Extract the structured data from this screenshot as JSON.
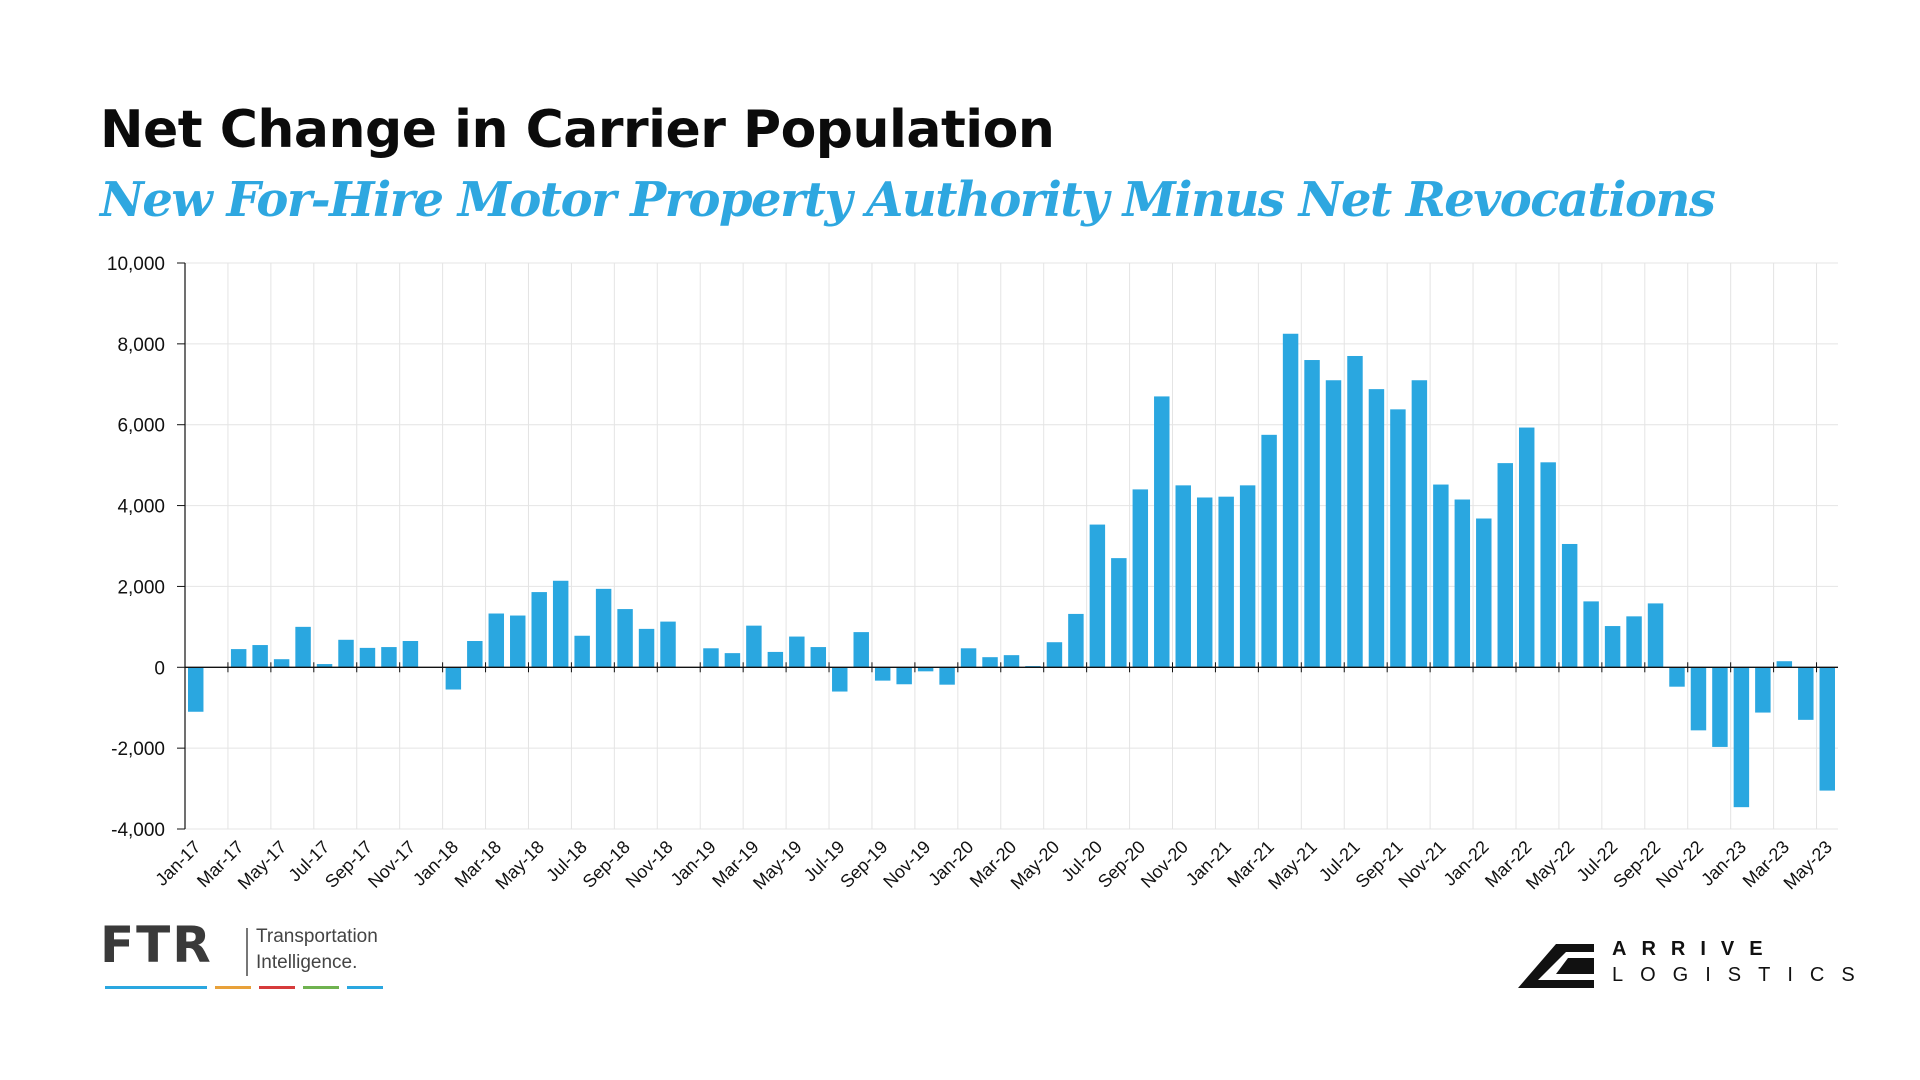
{
  "title": "Net Change in Carrier Population",
  "subtitle": "New For-Hire Motor Property Authority Minus Net Revocations",
  "colors": {
    "bar": "#2aa7e0",
    "subtitle": "#2ea7e0",
    "grid": "#e4e4e4",
    "axis": "#111111"
  },
  "chart_data": {
    "type": "bar",
    "ylim": [
      -4000,
      10000
    ],
    "yticks": [
      10000,
      8000,
      6000,
      4000,
      2000,
      0,
      -2000,
      -4000
    ],
    "ytick_labels": [
      "10,000",
      "8,000",
      "6,000",
      "4,000",
      "2,000",
      "0",
      "-2,000",
      "-4,000"
    ],
    "grid": true,
    "categories": [
      "Jan-17",
      "Feb-17",
      "Mar-17",
      "Apr-17",
      "May-17",
      "Jun-17",
      "Jul-17",
      "Aug-17",
      "Sep-17",
      "Oct-17",
      "Nov-17",
      "Dec-17",
      "Jan-18",
      "Feb-18",
      "Mar-18",
      "Apr-18",
      "May-18",
      "Jun-18",
      "Jul-18",
      "Aug-18",
      "Sep-18",
      "Oct-18",
      "Nov-18",
      "Dec-18",
      "Jan-19",
      "Feb-19",
      "Mar-19",
      "Apr-19",
      "May-19",
      "Jun-19",
      "Jul-19",
      "Aug-19",
      "Sep-19",
      "Oct-19",
      "Nov-19",
      "Dec-19",
      "Jan-20",
      "Feb-20",
      "Mar-20",
      "Apr-20",
      "May-20",
      "Jun-20",
      "Jul-20",
      "Aug-20",
      "Sep-20",
      "Oct-20",
      "Nov-20",
      "Dec-20",
      "Jan-21",
      "Feb-21",
      "Mar-21",
      "Apr-21",
      "May-21",
      "Jun-21",
      "Jul-21",
      "Aug-21",
      "Sep-21",
      "Oct-21",
      "Nov-21",
      "Dec-21",
      "Jan-22",
      "Feb-22",
      "Mar-22",
      "Apr-22",
      "May-22",
      "Jun-22",
      "Jul-22",
      "Aug-22",
      "Sep-22",
      "Oct-22",
      "Nov-22",
      "Dec-22",
      "Jan-23",
      "Feb-23",
      "Mar-23",
      "Apr-23",
      "May-23"
    ],
    "x_tick_labels": [
      "Jan-17",
      "Mar-17",
      "May-17",
      "Jul-17",
      "Sep-17",
      "Nov-17",
      "Jan-18",
      "Mar-18",
      "May-18",
      "Jul-18",
      "Sep-18",
      "Nov-18",
      "Jan-19",
      "Mar-19",
      "May-19",
      "Jul-19",
      "Sep-19",
      "Nov-19",
      "Jan-20",
      "Mar-20",
      "May-20",
      "Jul-20",
      "Sep-20",
      "Nov-20",
      "Jan-21",
      "Mar-21",
      "May-21",
      "Jul-21",
      "Sep-21",
      "Nov-21",
      "Jan-22",
      "Mar-22",
      "May-22",
      "Jul-22",
      "Sep-22",
      "Nov-22",
      "Jan-23",
      "Mar-23",
      "May-23"
    ],
    "values": [
      -1100,
      0,
      450,
      550,
      200,
      1000,
      80,
      680,
      480,
      500,
      650,
      0,
      -550,
      650,
      1330,
      1280,
      1860,
      2140,
      780,
      1940,
      1440,
      950,
      1130,
      0,
      470,
      350,
      1030,
      380,
      760,
      500,
      -600,
      870,
      -330,
      -420,
      -100,
      -430,
      470,
      250,
      300,
      30,
      620,
      1320,
      3530,
      2700,
      4400,
      6700,
      4500,
      4200,
      4220,
      4500,
      5750,
      8250,
      7600,
      7100,
      7700,
      6880,
      6380,
      7100,
      4520,
      4150,
      3680,
      5050,
      5930,
      5070,
      3050,
      1630,
      1020,
      1260,
      1580,
      -480,
      -1560,
      -1970,
      -3460,
      -1120,
      150,
      -1300,
      -3050
    ]
  },
  "logos": {
    "ftr_mark": "FTR",
    "ftr_line1": "Transportation",
    "ftr_line2": "Intelligence.",
    "ftr_bar_colors": [
      "#2aa7e0",
      "#e8a13a",
      "#d63b3b",
      "#6fb24f",
      "#2aa7e0"
    ],
    "arrive_line1": "ARRIVE",
    "arrive_line2": "LOGISTICS"
  }
}
